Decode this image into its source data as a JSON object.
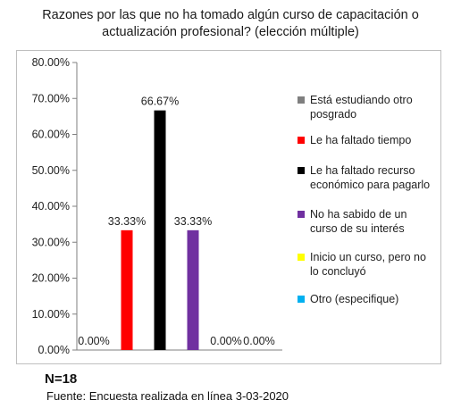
{
  "chart_data": {
    "type": "bar",
    "title": [
      "Razones por las que no ha tomado algún curso de capacitación o",
      "actualización profesional? (elección múltiple)"
    ],
    "xlabel": "",
    "ylabel": "",
    "ylim": [
      0,
      80
    ],
    "yticks": [
      "0.00%",
      "10.00%",
      "20.00%",
      "30.00%",
      "40.00%",
      "50.00%",
      "60.00%",
      "70.00%",
      "80.00%"
    ],
    "ytick_values": [
      0,
      10,
      20,
      30,
      40,
      50,
      60,
      70,
      80
    ],
    "grid": false,
    "legend_position": "right",
    "series": [
      {
        "name": "Está estudiando otro posgrado",
        "value": 0,
        "label": "0.00%",
        "color": "#7f7f7f"
      },
      {
        "name": "Le ha faltado tiempo",
        "value": 33.33,
        "label": "33.33%",
        "color": "#ff0000"
      },
      {
        "name": "Le ha faltado recurso económico para pagarlo",
        "value": 66.67,
        "label": "66.67%",
        "color": "#000000"
      },
      {
        "name": "No ha sabido de un curso de su interés",
        "value": 33.33,
        "label": "33.33%",
        "color": "#7030a0"
      },
      {
        "name": "Inicio un curso, pero no lo concluyó",
        "value": 0,
        "label": "0.00%",
        "color": "#ffff00"
      },
      {
        "name": "Otro (especifique)",
        "value": 0,
        "label": "0.00%",
        "color": "#00b0f0"
      }
    ]
  },
  "legend": {
    "items": [
      {
        "lines": [
          "Está estudiando otro",
          "posgrado"
        ]
      },
      {
        "lines": [
          "Le ha faltado tiempo"
        ]
      },
      {
        "lines": [
          "Le ha faltado recurso",
          "económico para pagarlo"
        ]
      },
      {
        "lines": [
          "No ha sabido de un",
          "curso de su interés"
        ]
      },
      {
        "lines": [
          "Inicio un curso, pero no",
          "lo concluyó"
        ]
      },
      {
        "lines": [
          "Otro (especifique)"
        ]
      }
    ]
  },
  "footer": {
    "n_label": "N=18",
    "source": "Fuente: Encuesta realizada en línea 3-03-2020"
  }
}
